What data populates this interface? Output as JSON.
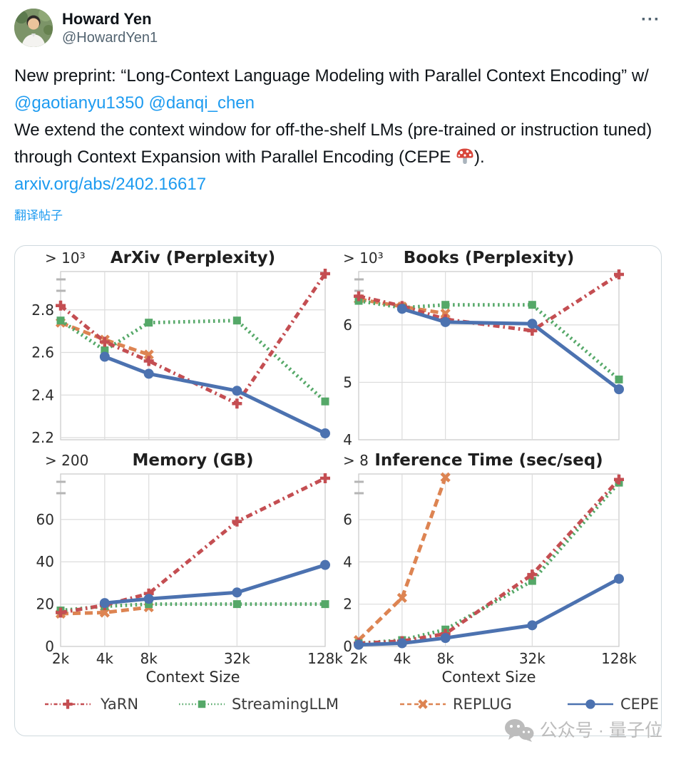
{
  "header": {
    "display_name": "Howard Yen",
    "handle": "@HowardYen1"
  },
  "icons": {
    "more_menu": "···",
    "mushroom_emoji": "🍄",
    "wechat_logo": "wechat-chat-bubbles"
  },
  "body": {
    "segments": [
      {
        "type": "text",
        "text": "New preprint: “Long-Context Language Modeling with Parallel Context Encoding” w/ "
      },
      {
        "type": "mention",
        "text": "@gaotianyu1350"
      },
      {
        "type": "text",
        "text": " "
      },
      {
        "type": "mention",
        "text": "@danqi_chen"
      },
      {
        "type": "text",
        "text": "\nWe extend the context window for off-the-shelf LMs (pre-trained or instruction tuned) through Context Expansion with Parallel Encoding (CEPE "
      },
      {
        "type": "emoji",
        "text": "🍄"
      },
      {
        "type": "text",
        "text": ")."
      }
    ],
    "link_text": "arxiv.org/abs/2402.16617",
    "translate_label": "翻译帖子"
  },
  "colors": {
    "link_blue": "#1d9bf0",
    "text": "#0f1419",
    "handle_gray": "#536471",
    "yarn_red": "#c44e52",
    "streamingllm_green": "#55a868",
    "replug_orange": "#dd8452",
    "cepe_blue": "#4c72b0"
  },
  "chart_data": [
    {
      "type": "line",
      "title": "ArXiv (Perplexity)",
      "break_label": "> 10³",
      "categories": [
        "2k",
        "4k",
        "8k",
        "32k",
        "128k"
      ],
      "xlabel": "",
      "show_xtick_labels": false,
      "ylim": [
        2.19,
        2.98
      ],
      "yticks": [
        {
          "v": 2.2,
          "label": "2.2"
        },
        {
          "v": 2.4,
          "label": "2.4"
        },
        {
          "v": 2.6,
          "label": "2.6"
        },
        {
          "v": 2.8,
          "label": "2.8"
        }
      ],
      "series": [
        {
          "name": "REPLUG",
          "values": [
            2.74,
            2.66,
            2.59,
            null,
            null
          ]
        },
        {
          "name": "StreamingLLM",
          "values": [
            2.75,
            2.61,
            2.74,
            2.75,
            2.37
          ]
        },
        {
          "name": "YaRN",
          "values": [
            2.82,
            2.65,
            2.56,
            2.36,
            2.97
          ]
        },
        {
          "name": "CEPE",
          "values": [
            null,
            2.58,
            2.5,
            2.42,
            2.22
          ]
        }
      ]
    },
    {
      "type": "line",
      "title": "Books (Perplexity)",
      "break_label": "> 10³",
      "categories": [
        "2k",
        "4k",
        "8k",
        "32k",
        "128k"
      ],
      "xlabel": "",
      "show_xtick_labels": false,
      "ylim": [
        4.0,
        6.93
      ],
      "yticks": [
        {
          "v": 4,
          "label": "4"
        },
        {
          "v": 5,
          "label": "5"
        },
        {
          "v": 6,
          "label": "6"
        }
      ],
      "series": [
        {
          "name": "REPLUG",
          "values": [
            6.45,
            6.32,
            6.2,
            null,
            null
          ]
        },
        {
          "name": "StreamingLLM",
          "values": [
            6.42,
            6.3,
            6.35,
            6.35,
            5.05
          ]
        },
        {
          "name": "YaRN",
          "values": [
            6.5,
            6.33,
            6.1,
            5.9,
            6.88
          ]
        },
        {
          "name": "CEPE",
          "values": [
            null,
            6.28,
            6.05,
            6.02,
            4.88
          ]
        }
      ]
    },
    {
      "type": "line",
      "title": "Memory (GB)",
      "break_label": "> 200",
      "categories": [
        "2k",
        "4k",
        "8k",
        "32k",
        "128k"
      ],
      "xlabel": "Context Size",
      "show_xtick_labels": true,
      "ylim": [
        0,
        81.5
      ],
      "yticks": [
        {
          "v": 0,
          "label": "0"
        },
        {
          "v": 20,
          "label": "20"
        },
        {
          "v": 40,
          "label": "40"
        },
        {
          "v": 60,
          "label": "60"
        }
      ],
      "series": [
        {
          "name": "REPLUG",
          "values": [
            15.5,
            16,
            18.5,
            null,
            null
          ]
        },
        {
          "name": "StreamingLLM",
          "values": [
            17,
            19,
            20,
            20,
            20
          ]
        },
        {
          "name": "YaRN",
          "values": [
            16,
            19.5,
            25,
            59,
            79.5
          ]
        },
        {
          "name": "CEPE",
          "values": [
            null,
            20.5,
            22.5,
            25.5,
            38.5
          ]
        }
      ]
    },
    {
      "type": "line",
      "title": "Inference Time (sec/seq)",
      "break_label": "> 8",
      "categories": [
        "2k",
        "4k",
        "8k",
        "32k",
        "128k"
      ],
      "xlabel": "Context Size",
      "show_xtick_labels": true,
      "ylim": [
        0,
        8.16
      ],
      "yticks": [
        {
          "v": 0,
          "label": "0"
        },
        {
          "v": 2,
          "label": "2"
        },
        {
          "v": 4,
          "label": "4"
        },
        {
          "v": 6,
          "label": "6"
        }
      ],
      "series": [
        {
          "name": "REPLUG",
          "values": [
            0.3,
            2.3,
            8.0,
            null,
            null
          ]
        },
        {
          "name": "StreamingLLM",
          "values": [
            0.15,
            0.3,
            0.8,
            3.1,
            7.75
          ]
        },
        {
          "name": "YaRN",
          "values": [
            0.15,
            0.25,
            0.6,
            3.4,
            7.9
          ]
        },
        {
          "name": "CEPE",
          "values": [
            0.08,
            0.15,
            0.4,
            1.0,
            3.2
          ]
        }
      ]
    }
  ],
  "figure_legend": {
    "position": "bottom",
    "entries": [
      {
        "label": "YaRN",
        "color": "#c44e52",
        "line_style": "dash-dot",
        "marker": "plus"
      },
      {
        "label": "StreamingLLM",
        "color": "#55a868",
        "line_style": "dotted",
        "marker": "square"
      },
      {
        "label": "REPLUG",
        "color": "#dd8452",
        "line_style": "dashed",
        "marker": "x"
      },
      {
        "label": "CEPE",
        "color": "#4c72b0",
        "line_style": "solid",
        "marker": "circle"
      }
    ]
  },
  "chart_layout": {
    "x_positions": [
      0,
      0.1667,
      0.3333,
      0.6667,
      1
    ]
  },
  "watermark": {
    "text": "公众号 · 量子位"
  }
}
